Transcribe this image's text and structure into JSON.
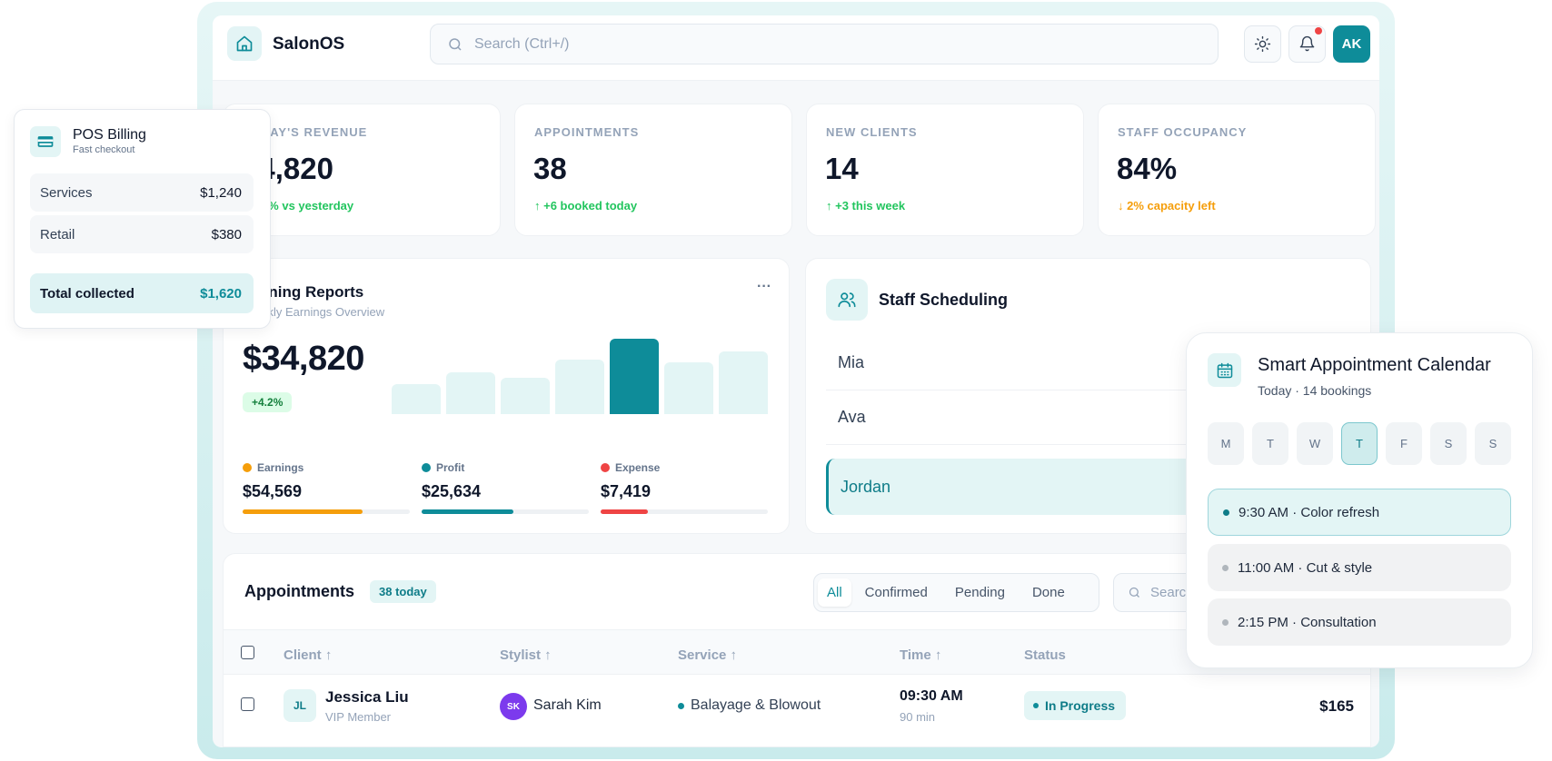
{
  "app": {
    "brand": "SalonOS",
    "user_initials": "AK"
  },
  "search": {
    "placeholder": "Search (Ctrl+/)"
  },
  "kpis": [
    {
      "label": "TODAY'S REVENUE",
      "value": "$4,820",
      "delta": "↑ 8.2% vs yesterday",
      "tone": "green"
    },
    {
      "label": "APPOINTMENTS",
      "value": "38",
      "delta": "↑ +6 booked today",
      "tone": "green"
    },
    {
      "label": "NEW CLIENTS",
      "value": "14",
      "delta": "↑ +3 this week",
      "tone": "green"
    },
    {
      "label": "STAFF OCCUPANCY",
      "value": "84%",
      "delta": "↓ 2% capacity left",
      "tone": "orange"
    }
  ],
  "earnings": {
    "title": "Earning Reports",
    "subtitle": "Weekly Earnings Overview",
    "total": "$34,820",
    "change": "+4.2%",
    "more": "···",
    "bars": [
      0.4,
      0.55,
      0.48,
      0.72,
      1.0,
      0.69,
      0.83
    ],
    "active_bar": 4,
    "metrics": [
      {
        "label": "Earnings",
        "value": "$54,569",
        "color": "#f59e0b",
        "progress": 0.72
      },
      {
        "label": "Profit",
        "value": "$25,634",
        "color": "#0e8c99",
        "progress": 0.55
      },
      {
        "label": "Expense",
        "value": "$7,419",
        "color": "#ef4444",
        "progress": 0.28
      }
    ]
  },
  "scheduling": {
    "title": "Staff Scheduling",
    "staff": [
      "Mia",
      "Ava",
      "Jordan"
    ],
    "active": "Jordan"
  },
  "appointments": {
    "title": "Appointments",
    "badge": "38 today",
    "filters": [
      "All",
      "Confirmed",
      "Pending",
      "Done"
    ],
    "active_filter": "All",
    "search_placeholder": "Search",
    "columns": [
      "Client ↑",
      "Stylist ↑",
      "Service ↑",
      "Time ↑",
      "Status"
    ],
    "rows": [
      {
        "client_initials": "JL",
        "client": "Jessica Liu",
        "client_tier": "VIP Member",
        "stylist_initials": "SK",
        "stylist": "Sarah Kim",
        "service": "Balayage & Blowout",
        "time": "09:30 AM",
        "duration": "90 min",
        "status": "In Progress",
        "price": "$165"
      }
    ]
  },
  "pos": {
    "title": "POS Billing",
    "subtitle": "Fast checkout",
    "lines": [
      {
        "label": "Services",
        "amount": "$1,240"
      },
      {
        "label": "Retail",
        "amount": "$380"
      }
    ],
    "total_label": "Total collected",
    "total": "$1,620"
  },
  "calendar": {
    "title": "Smart Appointment Calendar",
    "subtitle": "Today · 14 bookings",
    "days": [
      "M",
      "T",
      "W",
      "T",
      "F",
      "S",
      "S"
    ],
    "active_day": 3,
    "slots": [
      {
        "label": "9:30 AM · Color refresh",
        "active": true
      },
      {
        "label": "11:00 AM · Cut & style",
        "active": false
      },
      {
        "label": "2:15 PM · Consultation",
        "active": false
      }
    ]
  }
}
